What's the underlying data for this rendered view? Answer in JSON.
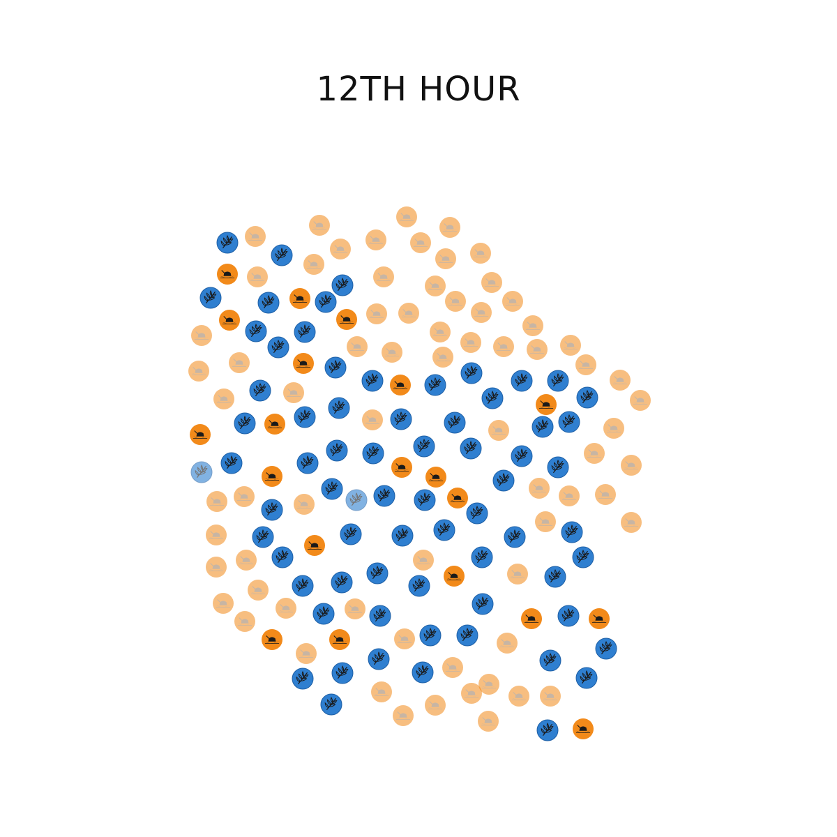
{
  "title": "12TH HOUR",
  "colors": {
    "blue": "#2f7fd0",
    "blue_faded": "#8ab6e6",
    "orange": "#f28a1a",
    "orange_faded": "#fcd09c",
    "icon_dark": "#1a1a1a",
    "icon_on_faded": "#9a7a5a"
  },
  "icons": {
    "blue": "wheat-icon",
    "orange": "boat-icon"
  },
  "dots": [
    [
      "b",
      326,
      348
    ],
    [
      "bf",
      289,
      677
    ],
    [
      "b",
      404,
      366
    ],
    [
      "b",
      302,
      427
    ],
    [
      "b",
      385,
      434
    ],
    [
      "b",
      467,
      433
    ],
    [
      "b",
      491,
      409
    ],
    [
      "b",
      367,
      475
    ],
    [
      "b",
      437,
      476
    ],
    [
      "b",
      399,
      498
    ],
    [
      "b",
      481,
      527
    ],
    [
      "b",
      373,
      560
    ],
    [
      "b",
      534,
      546
    ],
    [
      "b",
      624,
      552
    ],
    [
      "b",
      676,
      535
    ],
    [
      "b",
      748,
      546
    ],
    [
      "b",
      800,
      546
    ],
    [
      "b",
      842,
      570
    ],
    [
      "b",
      706,
      571
    ],
    [
      "b",
      486,
      585
    ],
    [
      "b",
      437,
      598
    ],
    [
      "b",
      351,
      607
    ],
    [
      "b",
      575,
      601
    ],
    [
      "b",
      652,
      606
    ],
    [
      "b",
      778,
      612
    ],
    [
      "b",
      816,
      605
    ],
    [
      "b",
      332,
      664
    ],
    [
      "b",
      441,
      664
    ],
    [
      "b",
      483,
      646
    ],
    [
      "b",
      535,
      650
    ],
    [
      "b",
      608,
      640
    ],
    [
      "b",
      675,
      643
    ],
    [
      "b",
      748,
      654
    ],
    [
      "b",
      800,
      670
    ],
    [
      "b",
      476,
      701
    ],
    [
      "bf",
      511,
      717
    ],
    [
      "b",
      551,
      711
    ],
    [
      "b",
      609,
      717
    ],
    [
      "b",
      722,
      689
    ],
    [
      "b",
      390,
      731
    ],
    [
      "b",
      684,
      736
    ],
    [
      "b",
      377,
      770
    ],
    [
      "b",
      503,
      766
    ],
    [
      "b",
      577,
      768
    ],
    [
      "b",
      637,
      760
    ],
    [
      "b",
      738,
      770
    ],
    [
      "b",
      820,
      763
    ],
    [
      "b",
      405,
      799
    ],
    [
      "b",
      691,
      799
    ],
    [
      "b",
      836,
      799
    ],
    [
      "b",
      434,
      840
    ],
    [
      "b",
      490,
      835
    ],
    [
      "b",
      541,
      822
    ],
    [
      "b",
      601,
      840
    ],
    [
      "b",
      796,
      827
    ],
    [
      "b",
      464,
      880
    ],
    [
      "b",
      545,
      883
    ],
    [
      "b",
      692,
      866
    ],
    [
      "b",
      617,
      911
    ],
    [
      "b",
      670,
      911
    ],
    [
      "b",
      815,
      883
    ],
    [
      "b",
      869,
      930
    ],
    [
      "b",
      434,
      973
    ],
    [
      "b",
      491,
      965
    ],
    [
      "b",
      543,
      945
    ],
    [
      "b",
      606,
      964
    ],
    [
      "b",
      789,
      947
    ],
    [
      "b",
      841,
      972
    ],
    [
      "b",
      475,
      1010
    ],
    [
      "b",
      785,
      1047
    ],
    [
      "o",
      326,
      393
    ],
    [
      "o",
      430,
      428
    ],
    [
      "o",
      329,
      459
    ],
    [
      "o",
      497,
      458
    ],
    [
      "o",
      435,
      521
    ],
    [
      "o",
      574,
      552
    ],
    [
      "o",
      783,
      580
    ],
    [
      "o",
      394,
      608
    ],
    [
      "o",
      287,
      623
    ],
    [
      "o",
      390,
      683
    ],
    [
      "o",
      576,
      670
    ],
    [
      "o",
      625,
      684
    ],
    [
      "o",
      656,
      714
    ],
    [
      "o",
      451,
      782
    ],
    [
      "o",
      651,
      826
    ],
    [
      "o",
      762,
      887
    ],
    [
      "o",
      859,
      887
    ],
    [
      "o",
      390,
      917
    ],
    [
      "o",
      487,
      917
    ],
    [
      "o",
      836,
      1045
    ],
    [
      "of",
      366,
      339
    ],
    [
      "of",
      458,
      323
    ],
    [
      "of",
      583,
      311
    ],
    [
      "of",
      645,
      326
    ],
    [
      "of",
      488,
      357
    ],
    [
      "of",
      539,
      344
    ],
    [
      "of",
      603,
      348
    ],
    [
      "of",
      639,
      371
    ],
    [
      "of",
      689,
      363
    ],
    [
      "of",
      450,
      379
    ],
    [
      "of",
      369,
      397
    ],
    [
      "of",
      550,
      397
    ],
    [
      "of",
      624,
      410
    ],
    [
      "of",
      705,
      405
    ],
    [
      "of",
      653,
      432
    ],
    [
      "of",
      735,
      432
    ],
    [
      "of",
      540,
      450
    ],
    [
      "of",
      586,
      449
    ],
    [
      "of",
      690,
      448
    ],
    [
      "of",
      631,
      476
    ],
    [
      "of",
      289,
      481
    ],
    [
      "of",
      764,
      467
    ],
    [
      "of",
      675,
      491
    ],
    [
      "of",
      512,
      497
    ],
    [
      "of",
      562,
      505
    ],
    [
      "of",
      635,
      512
    ],
    [
      "of",
      722,
      497
    ],
    [
      "of",
      770,
      501
    ],
    [
      "of",
      818,
      495
    ],
    [
      "of",
      285,
      532
    ],
    [
      "of",
      343,
      520
    ],
    [
      "of",
      840,
      523
    ],
    [
      "of",
      889,
      545
    ],
    [
      "of",
      421,
      563
    ],
    [
      "of",
      321,
      572
    ],
    [
      "of",
      918,
      574
    ],
    [
      "of",
      534,
      602
    ],
    [
      "of",
      715,
      617
    ],
    [
      "of",
      880,
      614
    ],
    [
      "of",
      852,
      650
    ],
    [
      "of",
      905,
      667
    ],
    [
      "of",
      773,
      700
    ],
    [
      "of",
      350,
      712
    ],
    [
      "of",
      311,
      719
    ],
    [
      "of",
      436,
      723
    ],
    [
      "of",
      816,
      711
    ],
    [
      "of",
      868,
      709
    ],
    [
      "of",
      782,
      748
    ],
    [
      "of",
      905,
      749
    ],
    [
      "of",
      310,
      767
    ],
    [
      "of",
      353,
      803
    ],
    [
      "of",
      310,
      813
    ],
    [
      "of",
      607,
      803
    ],
    [
      "of",
      742,
      823
    ],
    [
      "of",
      370,
      846
    ],
    [
      "of",
      320,
      865
    ],
    [
      "of",
      410,
      872
    ],
    [
      "of",
      509,
      873
    ],
    [
      "of",
      351,
      891
    ],
    [
      "of",
      580,
      916
    ],
    [
      "of",
      727,
      922
    ],
    [
      "of",
      439,
      937
    ],
    [
      "of",
      649,
      957
    ],
    [
      "of",
      701,
      981
    ],
    [
      "of",
      676,
      994
    ],
    [
      "of",
      547,
      992
    ],
    [
      "of",
      624,
      1011
    ],
    [
      "of",
      744,
      998
    ],
    [
      "of",
      789,
      998
    ],
    [
      "of",
      578,
      1026
    ],
    [
      "of",
      700,
      1034
    ]
  ]
}
